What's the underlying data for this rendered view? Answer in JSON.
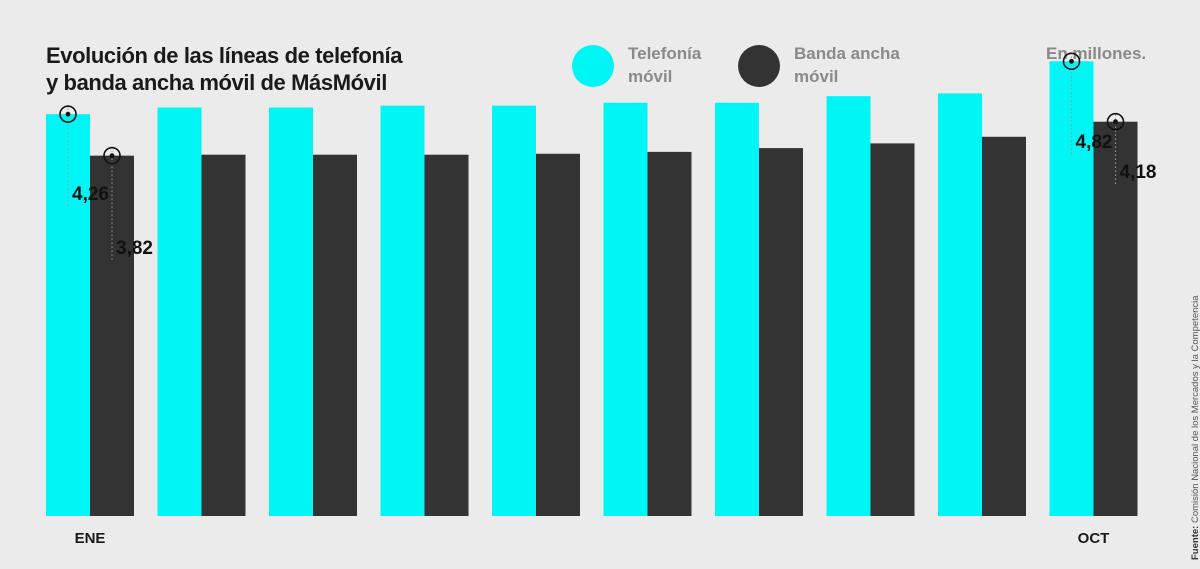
{
  "title": {
    "line1": "Evolución de las líneas de telefonía",
    "line2": "y banda ancha móvil de MásMóvil"
  },
  "unit_note": "En millones.",
  "source": {
    "label": "Fuente:",
    "text": "Comisión Nacional de los Mercados y la Competencia"
  },
  "colors": {
    "telefonia": "#00f5f5",
    "banda": "#333333",
    "background": "#ebebeb"
  },
  "legend": [
    {
      "line1": "Telefonía",
      "line2": "móvil",
      "color": "#00f5f5"
    },
    {
      "line1": "Banda ancha",
      "line2": "móvil",
      "color": "#333333"
    }
  ],
  "chart_data": {
    "type": "bar",
    "categories": [
      "ENE",
      "",
      "",
      "",
      "",
      "",
      "",
      "",
      "",
      "OCT"
    ],
    "series": [
      {
        "name": "Telefonía móvil",
        "values": [
          4.26,
          4.33,
          4.33,
          4.35,
          4.35,
          4.38,
          4.38,
          4.45,
          4.48,
          4.82
        ]
      },
      {
        "name": "Banda ancha móvil",
        "values": [
          3.82,
          3.83,
          3.83,
          3.83,
          3.84,
          3.86,
          3.9,
          3.95,
          4.02,
          4.18
        ]
      }
    ],
    "annotations": [
      {
        "series": 0,
        "index": 0,
        "label": "4,26"
      },
      {
        "series": 1,
        "index": 0,
        "label": "3,82"
      },
      {
        "series": 0,
        "index": 9,
        "label": "4,82"
      },
      {
        "series": 1,
        "index": 9,
        "label": "4,18"
      }
    ],
    "ylim": [
      0,
      5
    ],
    "grid": false,
    "legend_position": "top"
  }
}
